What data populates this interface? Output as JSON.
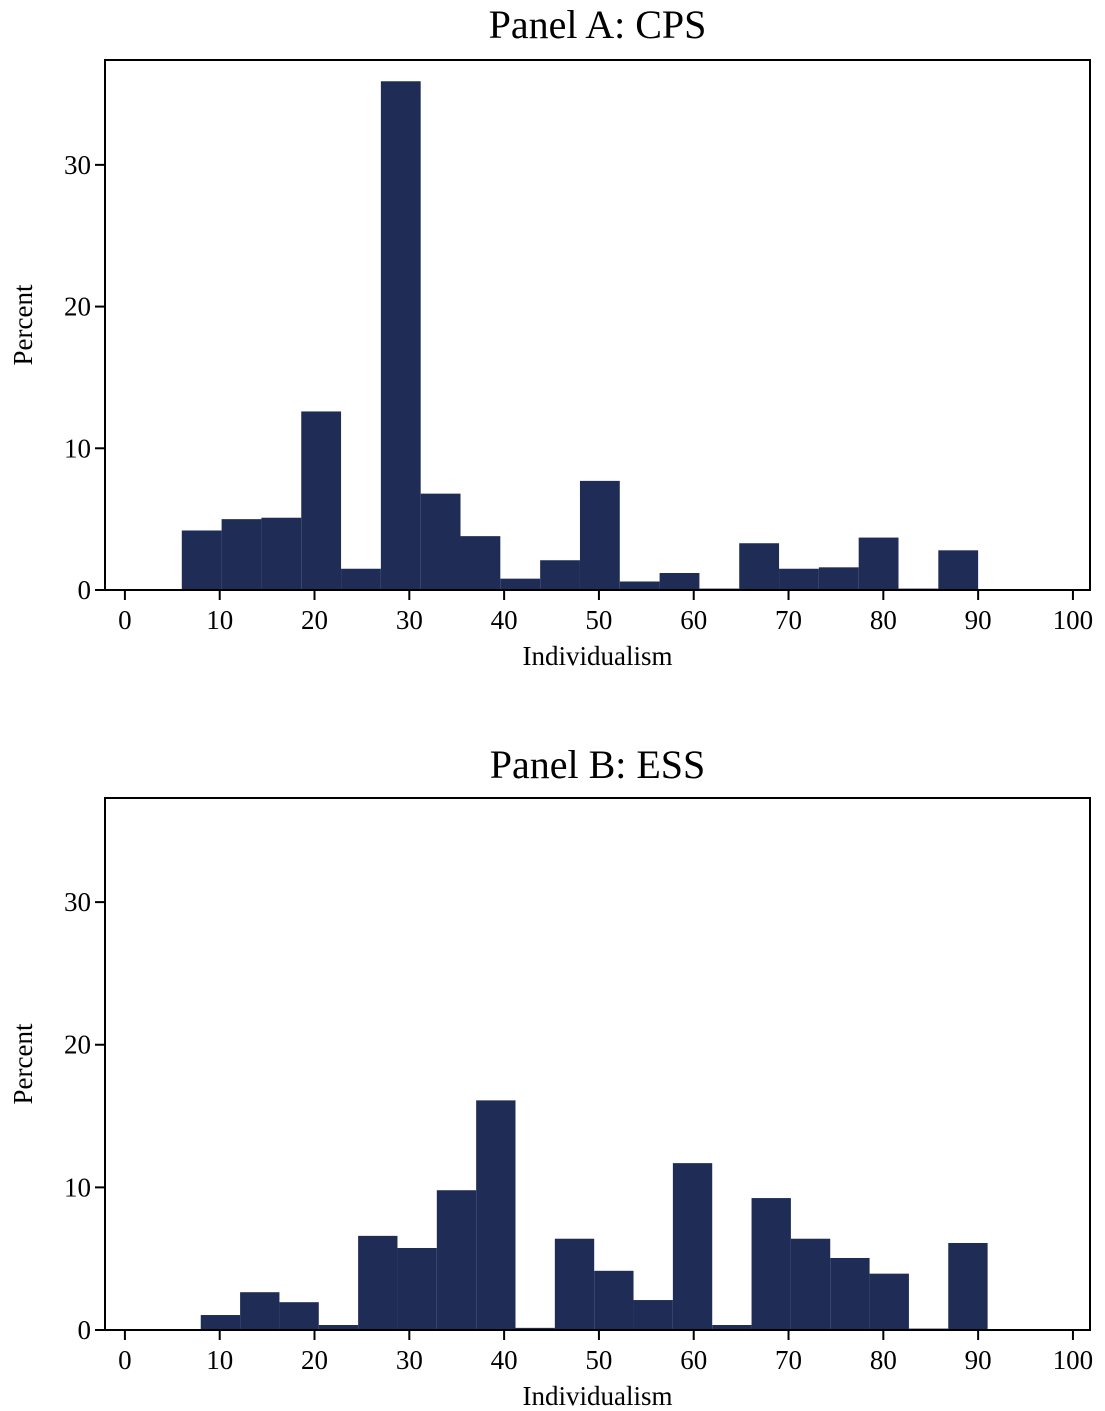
{
  "chart_data": [
    {
      "type": "histogram",
      "title": "Panel A: CPS",
      "xlabel": "Individualism",
      "ylabel": "Percent",
      "color": "#1f2d56",
      "bins": [
        6,
        10.2,
        14.4,
        18.6,
        22.8,
        27,
        31.2,
        35.4,
        39.6,
        43.8,
        48,
        52.2,
        56.4,
        60.6,
        64.8,
        69,
        73.2,
        77.4,
        81.6,
        85.8,
        90
      ],
      "values": [
        4.2,
        5.0,
        5.1,
        12.6,
        1.5,
        35.9,
        6.8,
        3.8,
        0.8,
        2.1,
        7.7,
        0.6,
        1.2,
        0.1,
        3.3,
        1.5,
        1.6,
        3.7,
        0.1,
        2.8
      ],
      "xlim": [
        -2.1,
        101.8
      ],
      "ylim": [
        0,
        37.4
      ],
      "xticks": [
        0,
        10,
        20,
        30,
        40,
        50,
        60,
        70,
        80,
        90,
        100
      ],
      "yticks": [
        0,
        10,
        20,
        30
      ]
    },
    {
      "type": "histogram",
      "title": "Panel B: ESS",
      "xlabel": "Individualism",
      "ylabel": "Percent",
      "color": "#1f2d56",
      "bins": [
        8,
        12.15,
        16.3,
        20.45,
        24.6,
        28.75,
        32.9,
        37.05,
        41.2,
        45.35,
        49.5,
        53.65,
        57.8,
        61.95,
        66.1,
        70.25,
        74.4,
        78.55,
        82.7,
        86.85,
        91
      ],
      "values": [
        1.05,
        2.65,
        1.95,
        0.35,
        6.6,
        5.75,
        9.8,
        16.1,
        0.15,
        6.4,
        4.15,
        2.1,
        11.7,
        0.35,
        9.25,
        6.4,
        5.05,
        3.95,
        0.1,
        6.1
      ],
      "xlim": [
        -2.1,
        101.8
      ],
      "ylim": [
        0,
        37.3
      ],
      "xticks": [
        0,
        10,
        20,
        30,
        40,
        50,
        60,
        70,
        80,
        90,
        100
      ],
      "yticks": [
        0,
        10,
        20,
        30
      ]
    }
  ]
}
